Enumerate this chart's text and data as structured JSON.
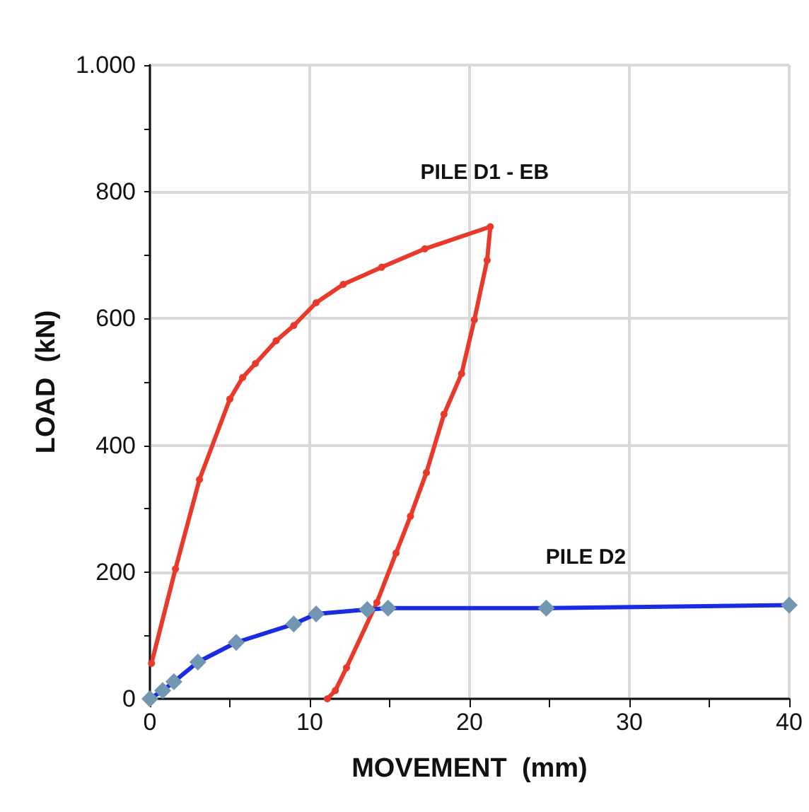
{
  "chart_data": {
    "type": "line",
    "xlabel": "MOVEMENT  (mm)",
    "ylabel": "LOAD  (kN)",
    "xlim": [
      0,
      40
    ],
    "ylim": [
      0,
      1000
    ],
    "xticks": [
      0,
      {
        "value": 5,
        "label": null
      },
      10,
      {
        "value": 15,
        "label": null
      },
      20,
      {
        "value": 25,
        "label": null
      },
      30,
      {
        "value": 35,
        "label": null
      },
      40
    ],
    "yticks": [
      0,
      {
        "value": 100,
        "label": null
      },
      200,
      {
        "value": 300,
        "label": null
      },
      400,
      {
        "value": 500,
        "label": null
      },
      600,
      {
        "value": 700,
        "label": null
      },
      800,
      {
        "value": 900,
        "label": null
      },
      {
        "value": 1000,
        "label": "1.000"
      }
    ],
    "grid": true,
    "legend": false,
    "line_style": "solid",
    "series": [
      {
        "name": "PILE D1 - EB",
        "color": "#e8392a",
        "marker": "circle",
        "x": [
          0.1,
          1.6,
          3.1,
          5.0,
          5.8,
          6.6,
          7.9,
          9.0,
          10.4,
          12.1,
          14.5,
          17.2,
          21.3,
          21.1,
          20.3,
          19.5,
          18.4,
          17.3,
          16.3,
          15.4,
          14.2,
          12.3,
          11.6,
          11.1
        ],
        "values": [
          56,
          205,
          346,
          473,
          507,
          529,
          565,
          589,
          625,
          654,
          681,
          710,
          745,
          692,
          598,
          513,
          449,
          357,
          288,
          230,
          152,
          49,
          13,
          0
        ]
      },
      {
        "name": "PILE D2",
        "color": "#1a2be0",
        "marker": "diamond",
        "x": [
          0,
          0.8,
          1.5,
          3.0,
          5.4,
          9.0,
          10.4,
          13.6,
          14.9,
          24.8,
          40
        ],
        "values": [
          0,
          13,
          27,
          58,
          89,
          118,
          134,
          141,
          143,
          143,
          148
        ]
      }
    ]
  }
}
